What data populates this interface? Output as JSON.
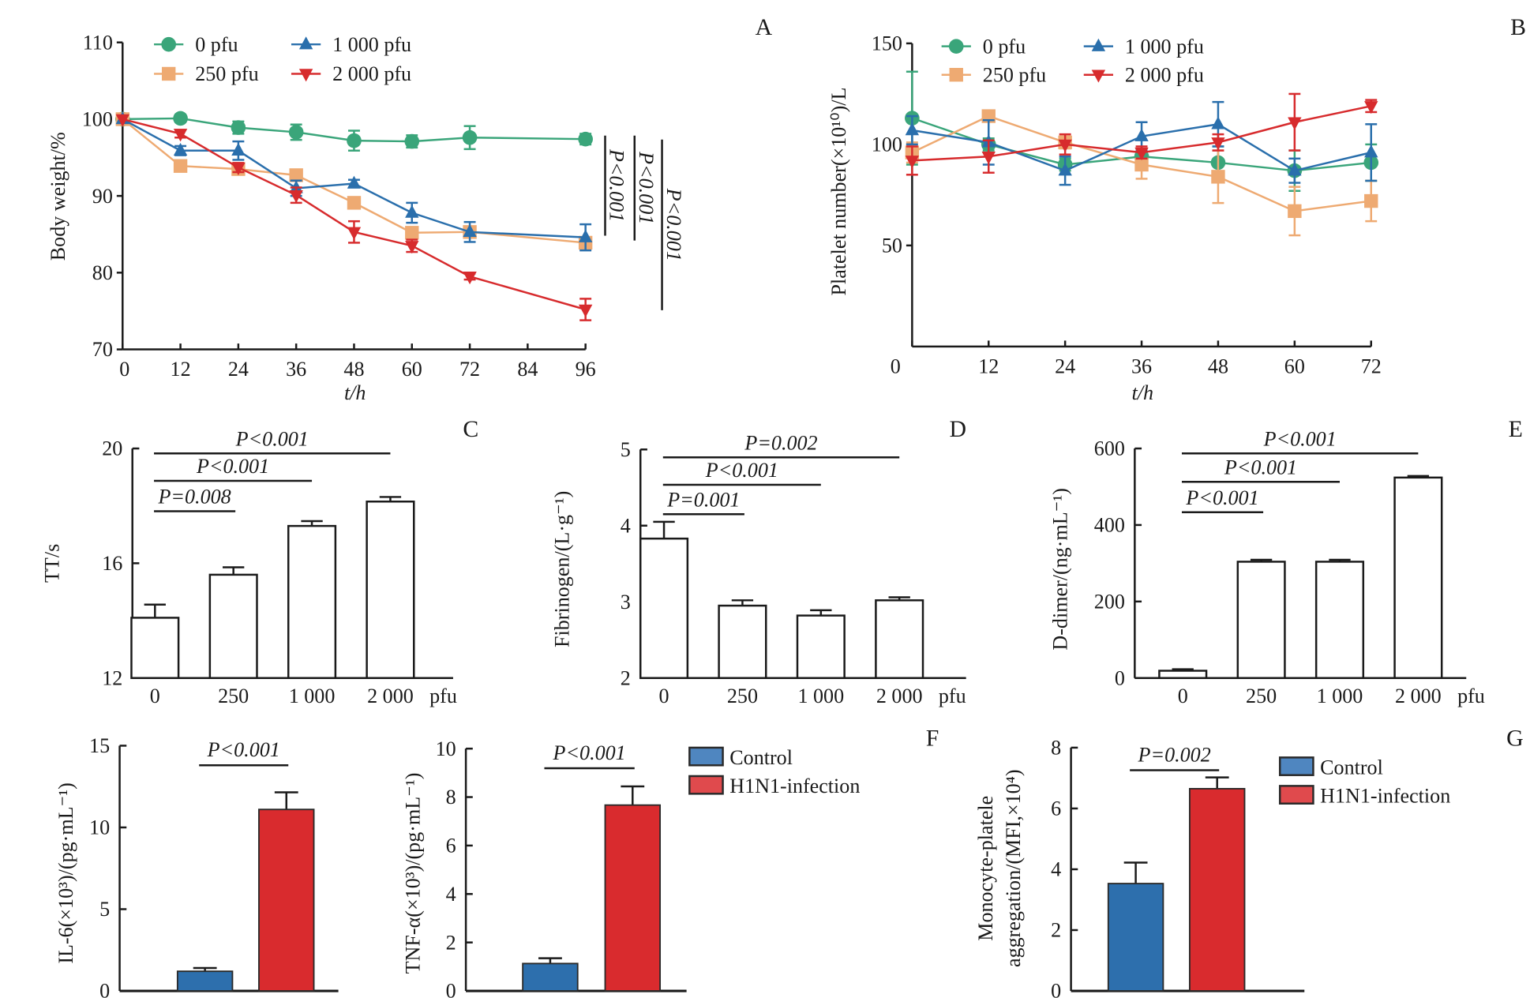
{
  "chart_data": [
    {
      "panel": "A",
      "type": "line",
      "ylabel": "Body weight/%",
      "xlabel": "t/h",
      "xlim": [
        0,
        96
      ],
      "ylim": [
        70,
        110
      ],
      "xticks": [
        0,
        12,
        24,
        36,
        48,
        60,
        72,
        84,
        96
      ],
      "yticks": [
        70,
        80,
        90,
        100,
        110
      ],
      "x": [
        0,
        12,
        24,
        36,
        48,
        60,
        72,
        96
      ],
      "series": [
        {
          "name": "0 pfu",
          "color": "#3aa57a",
          "marker": "circle",
          "values": [
            100,
            100.1,
            98.9,
            98.3,
            97.2,
            97.1,
            97.6,
            97.4
          ],
          "errors": [
            0,
            0.5,
            0.8,
            1.0,
            1.3,
            0.8,
            1.5,
            0.7
          ]
        },
        {
          "name": "250 pfu",
          "color": "#eeaa72",
          "marker": "square",
          "values": [
            100,
            93.9,
            93.5,
            92.7,
            89.1,
            85.2,
            85.3,
            83.9
          ],
          "errors": [
            0,
            0.7,
            0.6,
            0.6,
            0.5,
            0.7,
            0.7,
            0.6
          ]
        },
        {
          "name": "1 000 pfu",
          "color": "#2a6fac",
          "marker": "triangle-up",
          "values": [
            100,
            95.9,
            95.9,
            91.0,
            91.6,
            87.8,
            85.3,
            84.6
          ],
          "errors": [
            0,
            0.6,
            1.2,
            1.0,
            0.5,
            1.3,
            1.3,
            1.7
          ]
        },
        {
          "name": "2 000 pfu",
          "color": "#d72b2d",
          "marker": "triangle-down",
          "values": [
            100,
            98.1,
            93.7,
            90.1,
            85.3,
            83.5,
            79.5,
            75.2
          ],
          "errors": [
            0,
            0.5,
            0.6,
            1.0,
            1.4,
            0.8,
            0.4,
            1.4
          ]
        }
      ],
      "annotations": [
        "P<0.001",
        "P<0.001",
        "P<0.001"
      ],
      "legend_position": "top-left"
    },
    {
      "panel": "B",
      "type": "line",
      "ylabel": "Platelet number(×10¹⁰)/L",
      "xlabel": "t/h",
      "xlim": [
        0,
        72
      ],
      "ylim": [
        0,
        150
      ],
      "xticks": [
        0,
        12,
        24,
        36,
        48,
        60,
        72
      ],
      "yticks": [
        50,
        100,
        150
      ],
      "x": [
        0,
        12,
        24,
        36,
        48,
        60,
        72
      ],
      "series": [
        {
          "name": "0 pfu",
          "color": "#3aa57a",
          "marker": "circle",
          "values": [
            113,
            100,
            90,
            94,
            91,
            87,
            91
          ],
          "errors": [
            23,
            3,
            3,
            3,
            8,
            10,
            9
          ]
        },
        {
          "name": "250 pfu",
          "color": "#eeaa72",
          "marker": "square",
          "values": [
            96,
            114,
            101,
            90,
            84,
            67,
            72
          ],
          "errors": [
            5,
            2,
            3,
            7,
            13,
            12,
            10
          ]
        },
        {
          "name": "1 000 pfu",
          "color": "#2a6fac",
          "marker": "triangle-up",
          "values": [
            107,
            101,
            87,
            104,
            110,
            87,
            96
          ],
          "errors": [
            7,
            11,
            7,
            7,
            11,
            6,
            14
          ]
        },
        {
          "name": "2 000 pfu",
          "color": "#d72b2d",
          "marker": "triangle-down",
          "values": [
            92,
            94,
            100,
            96,
            101,
            111,
            119
          ],
          "errors": [
            7,
            8,
            5,
            3,
            4,
            14,
            3
          ]
        }
      ],
      "annotations": [],
      "legend_position": "top-left"
    },
    {
      "panel": "C",
      "type": "bar",
      "ylabel": "TT/s",
      "unit": "pfu",
      "categories": [
        "0",
        "250",
        "1 000",
        "2 000"
      ],
      "values": [
        14.1,
        15.6,
        17.3,
        18.15
      ],
      "errors": [
        0.46,
        0.26,
        0.17,
        0.16
      ],
      "ylim": [
        12,
        20
      ],
      "yticks": [
        12,
        16,
        20
      ],
      "fill": "#ffffff",
      "brackets": [
        {
          "from": 0,
          "to": 1,
          "label": "P=0.008"
        },
        {
          "from": 0,
          "to": 2,
          "label": "P<0.001"
        },
        {
          "from": 0,
          "to": 3,
          "label": "P<0.001"
        }
      ]
    },
    {
      "panel": "D",
      "type": "bar",
      "ylabel": "Fibrinogen/(L·g⁻¹)",
      "unit": "pfu",
      "categories": [
        "0",
        "250",
        "1 000",
        "2 000"
      ],
      "values": [
        3.83,
        2.95,
        2.82,
        3.02
      ],
      "errors": [
        0.22,
        0.07,
        0.07,
        0.04
      ],
      "ylim": [
        2,
        5
      ],
      "yticks": [
        2,
        3,
        4,
        5
      ],
      "fill": "#ffffff",
      "brackets": [
        {
          "from": 0,
          "to": 1,
          "label": "P=0.001"
        },
        {
          "from": 0,
          "to": 2,
          "label": "P<0.001"
        },
        {
          "from": 0,
          "to": 3,
          "label": "P=0.002"
        }
      ]
    },
    {
      "panel": "E",
      "type": "bar",
      "ylabel": "D-dimer/(ng·mL⁻¹)",
      "unit": "pfu",
      "categories": [
        "0",
        "250",
        "1 000",
        "2 000"
      ],
      "values": [
        19,
        304,
        304,
        524
      ],
      "errors": [
        4,
        5,
        5,
        4
      ],
      "ylim": [
        0,
        600
      ],
      "yticks": [
        0,
        200,
        400,
        600
      ],
      "fill": "#ffffff",
      "brackets": [
        {
          "from": 0,
          "to": 1,
          "label": "P<0.001"
        },
        {
          "from": 0,
          "to": 2,
          "label": "P<0.001"
        },
        {
          "from": 0,
          "to": 3,
          "label": "P<0.001"
        }
      ]
    },
    {
      "panel": "F",
      "type": "bar",
      "legend": [
        "Control",
        "H1N1-infection"
      ],
      "colors": [
        "#2d6fad",
        "#d92b2e"
      ],
      "subplots": [
        {
          "ylabel": "IL-6(×10³)/(pg·mL⁻¹)",
          "values": [
            1.2,
            11.1
          ],
          "errors": [
            0.2,
            1.05
          ],
          "ylim": [
            0,
            15
          ],
          "yticks": [
            0,
            5,
            10,
            15
          ],
          "bracket": "P<0.001"
        },
        {
          "ylabel": "TNF-α(×10³)/(pg·mL⁻¹)",
          "values": [
            1.13,
            7.67
          ],
          "errors": [
            0.22,
            0.77
          ],
          "ylim": [
            0,
            10
          ],
          "yticks": [
            0,
            2,
            4,
            6,
            8,
            10
          ],
          "bracket": "P<0.001"
        }
      ]
    },
    {
      "panel": "G",
      "type": "bar",
      "legend": [
        "Control",
        "H1N1-infection"
      ],
      "colors": [
        "#2d6fad",
        "#d92b2e"
      ],
      "ylabel_lines": [
        "Monocyte-platele",
        "aggregation/(MFI,×10⁴)"
      ],
      "values": [
        3.53,
        6.65
      ],
      "errors": [
        0.69,
        0.37
      ],
      "ylim": [
        0,
        8
      ],
      "yticks": [
        0,
        2,
        4,
        6,
        8
      ],
      "bracket": "P=0.002"
    }
  ]
}
